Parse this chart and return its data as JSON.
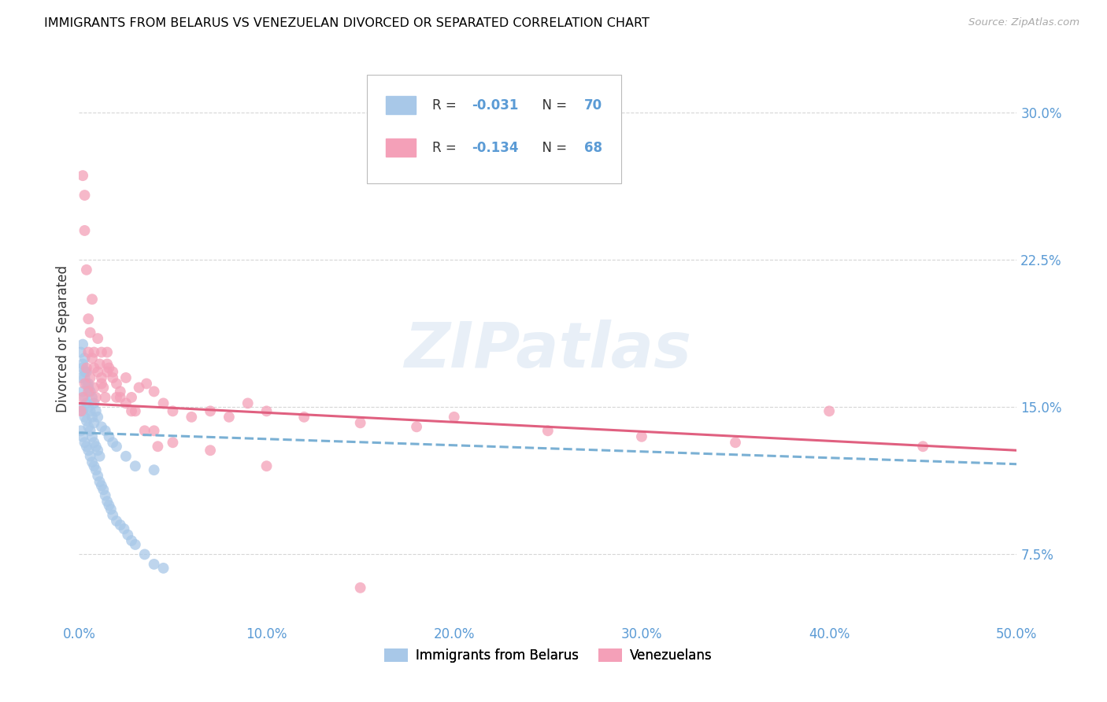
{
  "title": "IMMIGRANTS FROM BELARUS VS VENEZUELAN DIVORCED OR SEPARATED CORRELATION CHART",
  "source": "Source: ZipAtlas.com",
  "xlabel_ticks": [
    "0.0%",
    "10.0%",
    "20.0%",
    "30.0%",
    "40.0%",
    "50.0%"
  ],
  "xlabel_vals": [
    0.0,
    0.1,
    0.2,
    0.3,
    0.4,
    0.5
  ],
  "ylabel_ticks": [
    "7.5%",
    "15.0%",
    "22.5%",
    "30.0%"
  ],
  "ylabel_vals": [
    0.075,
    0.15,
    0.225,
    0.3
  ],
  "ylabel_label": "Divorced or Separated",
  "legend_label1": "Immigrants from Belarus",
  "legend_label2": "Venezuelans",
  "color_blue": "#a8c8e8",
  "color_pink": "#f4a0b8",
  "trendline_blue_color": "#7ab0d4",
  "trendline_pink_color": "#e06080",
  "watermark": "ZIPatlas",
  "xlim": [
    0.0,
    0.5
  ],
  "ylim": [
    0.04,
    0.33
  ],
  "trendline_blue": [
    0.0,
    0.5,
    0.137,
    0.121
  ],
  "trendline_pink": [
    0.0,
    0.5,
    0.152,
    0.128
  ],
  "scatter_blue_x": [
    0.001,
    0.001,
    0.001,
    0.002,
    0.002,
    0.002,
    0.002,
    0.003,
    0.003,
    0.003,
    0.003,
    0.004,
    0.004,
    0.004,
    0.004,
    0.005,
    0.005,
    0.005,
    0.005,
    0.006,
    0.006,
    0.006,
    0.007,
    0.007,
    0.007,
    0.008,
    0.008,
    0.008,
    0.009,
    0.009,
    0.01,
    0.01,
    0.011,
    0.011,
    0.012,
    0.013,
    0.014,
    0.015,
    0.016,
    0.017,
    0.018,
    0.02,
    0.022,
    0.024,
    0.026,
    0.028,
    0.03,
    0.035,
    0.04,
    0.045,
    0.001,
    0.002,
    0.002,
    0.003,
    0.003,
    0.004,
    0.005,
    0.006,
    0.007,
    0.008,
    0.009,
    0.01,
    0.012,
    0.014,
    0.016,
    0.018,
    0.02,
    0.025,
    0.03,
    0.04
  ],
  "scatter_blue_y": [
    0.138,
    0.15,
    0.165,
    0.135,
    0.148,
    0.158,
    0.172,
    0.132,
    0.145,
    0.155,
    0.168,
    0.13,
    0.143,
    0.152,
    0.162,
    0.128,
    0.14,
    0.15,
    0.16,
    0.125,
    0.138,
    0.148,
    0.122,
    0.135,
    0.145,
    0.12,
    0.132,
    0.142,
    0.118,
    0.13,
    0.115,
    0.128,
    0.112,
    0.125,
    0.11,
    0.108,
    0.105,
    0.102,
    0.1,
    0.098,
    0.095,
    0.092,
    0.09,
    0.088,
    0.085,
    0.082,
    0.08,
    0.075,
    0.07,
    0.068,
    0.178,
    0.182,
    0.17,
    0.175,
    0.165,
    0.168,
    0.162,
    0.158,
    0.155,
    0.152,
    0.148,
    0.145,
    0.14,
    0.138,
    0.135,
    0.132,
    0.13,
    0.125,
    0.12,
    0.118
  ],
  "scatter_pink_x": [
    0.001,
    0.002,
    0.003,
    0.004,
    0.005,
    0.006,
    0.007,
    0.008,
    0.009,
    0.01,
    0.011,
    0.012,
    0.013,
    0.014,
    0.015,
    0.016,
    0.018,
    0.02,
    0.022,
    0.025,
    0.028,
    0.032,
    0.036,
    0.04,
    0.045,
    0.05,
    0.06,
    0.07,
    0.08,
    0.09,
    0.1,
    0.12,
    0.15,
    0.18,
    0.2,
    0.25,
    0.3,
    0.35,
    0.4,
    0.45,
    0.003,
    0.004,
    0.005,
    0.006,
    0.007,
    0.008,
    0.01,
    0.012,
    0.015,
    0.018,
    0.022,
    0.028,
    0.035,
    0.042,
    0.002,
    0.003,
    0.005,
    0.008,
    0.012,
    0.015,
    0.02,
    0.025,
    0.03,
    0.04,
    0.05,
    0.07,
    0.1,
    0.15
  ],
  "scatter_pink_y": [
    0.148,
    0.155,
    0.162,
    0.17,
    0.158,
    0.165,
    0.175,
    0.16,
    0.155,
    0.168,
    0.172,
    0.165,
    0.16,
    0.155,
    0.178,
    0.17,
    0.168,
    0.162,
    0.158,
    0.165,
    0.155,
    0.16,
    0.162,
    0.158,
    0.152,
    0.148,
    0.145,
    0.148,
    0.145,
    0.152,
    0.148,
    0.145,
    0.142,
    0.14,
    0.145,
    0.138,
    0.135,
    0.132,
    0.148,
    0.13,
    0.24,
    0.22,
    0.195,
    0.188,
    0.205,
    0.178,
    0.185,
    0.178,
    0.172,
    0.165,
    0.155,
    0.148,
    0.138,
    0.13,
    0.268,
    0.258,
    0.178,
    0.17,
    0.162,
    0.168,
    0.155,
    0.152,
    0.148,
    0.138,
    0.132,
    0.128,
    0.12,
    0.058
  ]
}
